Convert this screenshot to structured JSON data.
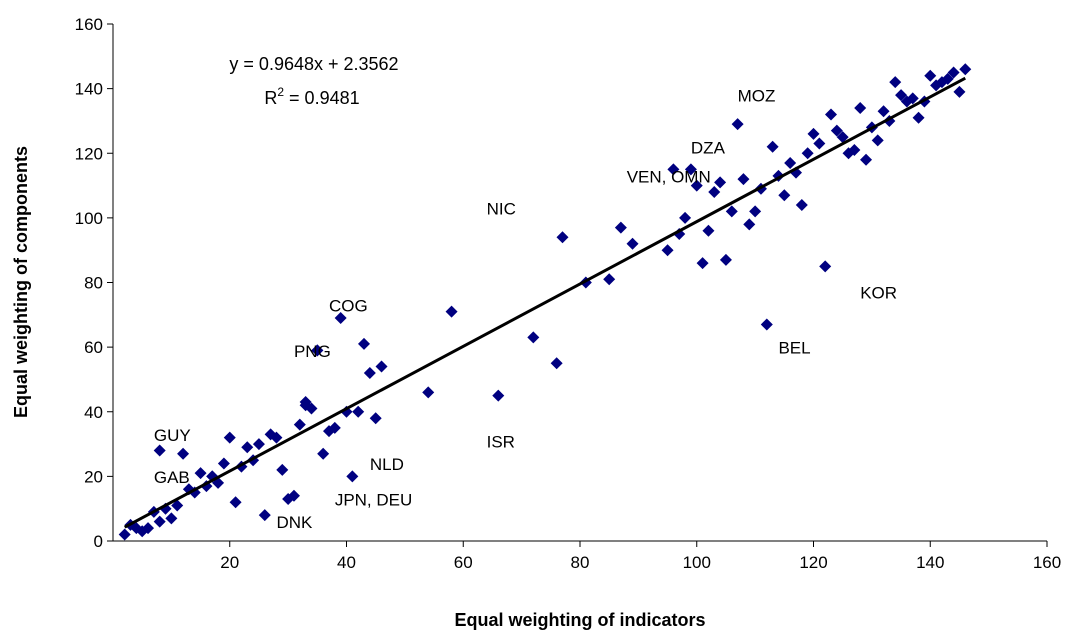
{
  "chart_data": {
    "type": "scatter",
    "xlabel": "Equal weighting of indicators",
    "ylabel": "Equal weighting of components",
    "xlim": [
      0,
      160
    ],
    "ylim": [
      0,
      160
    ],
    "x_ticks": [
      20,
      40,
      60,
      80,
      100,
      120,
      140,
      160
    ],
    "y_ticks": [
      0,
      20,
      40,
      60,
      80,
      100,
      120,
      140,
      160
    ],
    "grid": false,
    "legend": "none",
    "marker_color": "#000080",
    "trendline": {
      "slope": 0.9648,
      "intercept": 2.3562,
      "equation_text": "y = 0.9648x + 2.3562",
      "r2_prefix": "R",
      "r2_exp": "2",
      "r2_value": " = 0.9481",
      "x_range": [
        2,
        146
      ],
      "color": "#000000"
    },
    "points": [
      [
        2,
        2
      ],
      [
        3,
        5
      ],
      [
        4,
        4
      ],
      [
        5,
        3
      ],
      [
        6,
        4
      ],
      [
        7,
        9
      ],
      [
        8,
        6
      ],
      [
        9,
        10
      ],
      [
        10,
        7
      ],
      [
        11,
        11
      ],
      [
        12,
        27
      ],
      [
        13,
        16
      ],
      [
        14,
        15
      ],
      [
        15,
        21
      ],
      [
        16,
        17
      ],
      [
        17,
        20
      ],
      [
        18,
        18
      ],
      [
        19,
        24
      ],
      [
        20,
        32
      ],
      [
        21,
        12
      ],
      [
        22,
        23
      ],
      [
        23,
        29
      ],
      [
        24,
        25
      ],
      [
        25,
        30
      ],
      [
        26,
        8
      ],
      [
        27,
        33
      ],
      [
        28,
        32
      ],
      [
        29,
        22
      ],
      [
        30,
        13
      ],
      [
        31,
        14
      ],
      [
        32,
        36
      ],
      [
        33,
        43
      ],
      [
        34,
        41
      ],
      [
        35,
        59
      ],
      [
        36,
        27
      ],
      [
        37,
        34
      ],
      [
        38,
        35
      ],
      [
        39,
        69
      ],
      [
        40,
        40
      ],
      [
        42,
        40
      ],
      [
        43,
        61
      ],
      [
        44,
        52
      ],
      [
        45,
        38
      ],
      [
        46,
        54
      ],
      [
        54,
        46
      ],
      [
        58,
        71
      ],
      [
        66,
        45
      ],
      [
        72,
        63
      ],
      [
        76,
        55
      ],
      [
        77,
        94
      ],
      [
        81,
        80
      ],
      [
        85,
        81
      ],
      [
        87,
        97
      ],
      [
        89,
        92
      ],
      [
        95,
        90
      ],
      [
        96,
        115
      ],
      [
        97,
        95
      ],
      [
        98,
        100
      ],
      [
        99,
        115
      ],
      [
        100,
        110
      ],
      [
        101,
        86
      ],
      [
        102,
        96
      ],
      [
        103,
        108
      ],
      [
        104,
        111
      ],
      [
        105,
        87
      ],
      [
        106,
        102
      ],
      [
        107,
        129
      ],
      [
        108,
        112
      ],
      [
        109,
        98
      ],
      [
        110,
        102
      ],
      [
        111,
        109
      ],
      [
        112,
        67
      ],
      [
        113,
        122
      ],
      [
        114,
        113
      ],
      [
        115,
        107
      ],
      [
        116,
        117
      ],
      [
        117,
        114
      ],
      [
        118,
        104
      ],
      [
        119,
        120
      ],
      [
        120,
        126
      ],
      [
        121,
        123
      ],
      [
        122,
        85
      ],
      [
        123,
        132
      ],
      [
        124,
        127
      ],
      [
        125,
        125
      ],
      [
        126,
        120
      ],
      [
        127,
        121
      ],
      [
        128,
        134
      ],
      [
        129,
        118
      ],
      [
        130,
        128
      ],
      [
        131,
        124
      ],
      [
        132,
        133
      ],
      [
        133,
        130
      ],
      [
        134,
        142
      ],
      [
        135,
        138
      ],
      [
        136,
        136
      ],
      [
        137,
        137
      ],
      [
        138,
        131
      ],
      [
        139,
        136
      ],
      [
        140,
        144
      ],
      [
        141,
        141
      ],
      [
        142,
        142
      ],
      [
        143,
        143
      ],
      [
        144,
        145
      ],
      [
        145,
        139
      ],
      [
        146,
        146
      ],
      [
        8,
        28
      ],
      [
        17,
        20
      ],
      [
        33,
        42
      ],
      [
        35,
        59
      ],
      [
        41,
        20
      ]
    ],
    "annotations": [
      {
        "text": "MOZ",
        "x": 107,
        "y": 136
      },
      {
        "text": "DZA",
        "x": 99,
        "y": 120
      },
      {
        "text": "VEN, OMN",
        "x": 88,
        "y": 111
      },
      {
        "text": "NIC",
        "x": 64,
        "y": 101
      },
      {
        "text": "KOR",
        "x": 128,
        "y": 75
      },
      {
        "text": "COG",
        "x": 37,
        "y": 71
      },
      {
        "text": "PNG",
        "x": 31,
        "y": 57
      },
      {
        "text": "BEL",
        "x": 114,
        "y": 58
      },
      {
        "text": "ISR",
        "x": 64,
        "y": 29
      },
      {
        "text": "GUY",
        "x": 7,
        "y": 31
      },
      {
        "text": "GAB",
        "x": 7,
        "y": 18
      },
      {
        "text": "NLD",
        "x": 44,
        "y": 22
      },
      {
        "text": "JPN, DEU",
        "x": 38,
        "y": 11
      },
      {
        "text": "DNK",
        "x": 28,
        "y": 4
      }
    ]
  }
}
